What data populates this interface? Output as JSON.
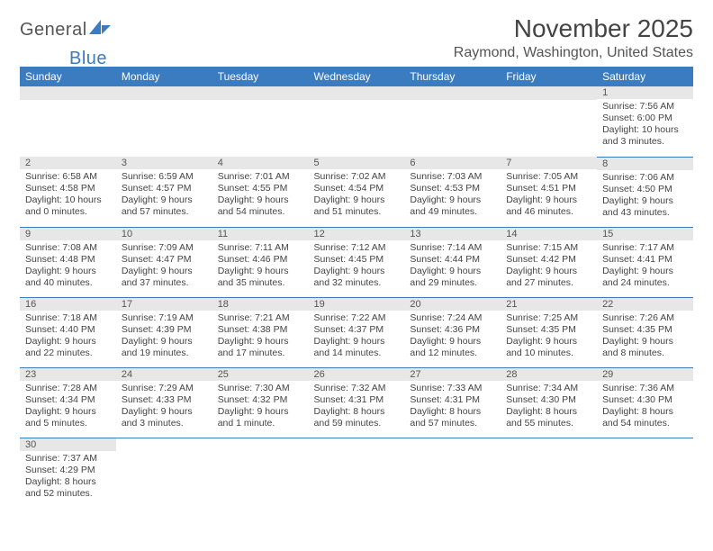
{
  "brand": {
    "general": "General",
    "blue": "Blue"
  },
  "title": "November 2025",
  "location": "Raymond, Washington, United States",
  "weekdays": [
    "Sunday",
    "Monday",
    "Tuesday",
    "Wednesday",
    "Thursday",
    "Friday",
    "Saturday"
  ],
  "colors": {
    "header_bg": "#3b7bbf",
    "header_text": "#ffffff",
    "daynum_bg": "#e7e7e7",
    "cell_border": "#3b7bbf",
    "body_text": "#444444"
  },
  "typography": {
    "title_fontsize": 28,
    "location_fontsize": 16,
    "weekday_fontsize": 12,
    "daynum_fontsize": 11,
    "data_fontsize": 10.5
  },
  "weeks": [
    [
      {
        "n": "",
        "sr": "",
        "ss": "",
        "dl": ""
      },
      {
        "n": "",
        "sr": "",
        "ss": "",
        "dl": ""
      },
      {
        "n": "",
        "sr": "",
        "ss": "",
        "dl": ""
      },
      {
        "n": "",
        "sr": "",
        "ss": "",
        "dl": ""
      },
      {
        "n": "",
        "sr": "",
        "ss": "",
        "dl": ""
      },
      {
        "n": "",
        "sr": "",
        "ss": "",
        "dl": ""
      },
      {
        "n": "1",
        "sr": "Sunrise: 7:56 AM",
        "ss": "Sunset: 6:00 PM",
        "dl": "Daylight: 10 hours and 3 minutes."
      }
    ],
    [
      {
        "n": "2",
        "sr": "Sunrise: 6:58 AM",
        "ss": "Sunset: 4:58 PM",
        "dl": "Daylight: 10 hours and 0 minutes."
      },
      {
        "n": "3",
        "sr": "Sunrise: 6:59 AM",
        "ss": "Sunset: 4:57 PM",
        "dl": "Daylight: 9 hours and 57 minutes."
      },
      {
        "n": "4",
        "sr": "Sunrise: 7:01 AM",
        "ss": "Sunset: 4:55 PM",
        "dl": "Daylight: 9 hours and 54 minutes."
      },
      {
        "n": "5",
        "sr": "Sunrise: 7:02 AM",
        "ss": "Sunset: 4:54 PM",
        "dl": "Daylight: 9 hours and 51 minutes."
      },
      {
        "n": "6",
        "sr": "Sunrise: 7:03 AM",
        "ss": "Sunset: 4:53 PM",
        "dl": "Daylight: 9 hours and 49 minutes."
      },
      {
        "n": "7",
        "sr": "Sunrise: 7:05 AM",
        "ss": "Sunset: 4:51 PM",
        "dl": "Daylight: 9 hours and 46 minutes."
      },
      {
        "n": "8",
        "sr": "Sunrise: 7:06 AM",
        "ss": "Sunset: 4:50 PM",
        "dl": "Daylight: 9 hours and 43 minutes."
      }
    ],
    [
      {
        "n": "9",
        "sr": "Sunrise: 7:08 AM",
        "ss": "Sunset: 4:48 PM",
        "dl": "Daylight: 9 hours and 40 minutes."
      },
      {
        "n": "10",
        "sr": "Sunrise: 7:09 AM",
        "ss": "Sunset: 4:47 PM",
        "dl": "Daylight: 9 hours and 37 minutes."
      },
      {
        "n": "11",
        "sr": "Sunrise: 7:11 AM",
        "ss": "Sunset: 4:46 PM",
        "dl": "Daylight: 9 hours and 35 minutes."
      },
      {
        "n": "12",
        "sr": "Sunrise: 7:12 AM",
        "ss": "Sunset: 4:45 PM",
        "dl": "Daylight: 9 hours and 32 minutes."
      },
      {
        "n": "13",
        "sr": "Sunrise: 7:14 AM",
        "ss": "Sunset: 4:44 PM",
        "dl": "Daylight: 9 hours and 29 minutes."
      },
      {
        "n": "14",
        "sr": "Sunrise: 7:15 AM",
        "ss": "Sunset: 4:42 PM",
        "dl": "Daylight: 9 hours and 27 minutes."
      },
      {
        "n": "15",
        "sr": "Sunrise: 7:17 AM",
        "ss": "Sunset: 4:41 PM",
        "dl": "Daylight: 9 hours and 24 minutes."
      }
    ],
    [
      {
        "n": "16",
        "sr": "Sunrise: 7:18 AM",
        "ss": "Sunset: 4:40 PM",
        "dl": "Daylight: 9 hours and 22 minutes."
      },
      {
        "n": "17",
        "sr": "Sunrise: 7:19 AM",
        "ss": "Sunset: 4:39 PM",
        "dl": "Daylight: 9 hours and 19 minutes."
      },
      {
        "n": "18",
        "sr": "Sunrise: 7:21 AM",
        "ss": "Sunset: 4:38 PM",
        "dl": "Daylight: 9 hours and 17 minutes."
      },
      {
        "n": "19",
        "sr": "Sunrise: 7:22 AM",
        "ss": "Sunset: 4:37 PM",
        "dl": "Daylight: 9 hours and 14 minutes."
      },
      {
        "n": "20",
        "sr": "Sunrise: 7:24 AM",
        "ss": "Sunset: 4:36 PM",
        "dl": "Daylight: 9 hours and 12 minutes."
      },
      {
        "n": "21",
        "sr": "Sunrise: 7:25 AM",
        "ss": "Sunset: 4:35 PM",
        "dl": "Daylight: 9 hours and 10 minutes."
      },
      {
        "n": "22",
        "sr": "Sunrise: 7:26 AM",
        "ss": "Sunset: 4:35 PM",
        "dl": "Daylight: 9 hours and 8 minutes."
      }
    ],
    [
      {
        "n": "23",
        "sr": "Sunrise: 7:28 AM",
        "ss": "Sunset: 4:34 PM",
        "dl": "Daylight: 9 hours and 5 minutes."
      },
      {
        "n": "24",
        "sr": "Sunrise: 7:29 AM",
        "ss": "Sunset: 4:33 PM",
        "dl": "Daylight: 9 hours and 3 minutes."
      },
      {
        "n": "25",
        "sr": "Sunrise: 7:30 AM",
        "ss": "Sunset: 4:32 PM",
        "dl": "Daylight: 9 hours and 1 minute."
      },
      {
        "n": "26",
        "sr": "Sunrise: 7:32 AM",
        "ss": "Sunset: 4:31 PM",
        "dl": "Daylight: 8 hours and 59 minutes."
      },
      {
        "n": "27",
        "sr": "Sunrise: 7:33 AM",
        "ss": "Sunset: 4:31 PM",
        "dl": "Daylight: 8 hours and 57 minutes."
      },
      {
        "n": "28",
        "sr": "Sunrise: 7:34 AM",
        "ss": "Sunset: 4:30 PM",
        "dl": "Daylight: 8 hours and 55 minutes."
      },
      {
        "n": "29",
        "sr": "Sunrise: 7:36 AM",
        "ss": "Sunset: 4:30 PM",
        "dl": "Daylight: 8 hours and 54 minutes."
      }
    ],
    [
      {
        "n": "30",
        "sr": "Sunrise: 7:37 AM",
        "ss": "Sunset: 4:29 PM",
        "dl": "Daylight: 8 hours and 52 minutes."
      },
      {
        "n": "",
        "sr": "",
        "ss": "",
        "dl": ""
      },
      {
        "n": "",
        "sr": "",
        "ss": "",
        "dl": ""
      },
      {
        "n": "",
        "sr": "",
        "ss": "",
        "dl": ""
      },
      {
        "n": "",
        "sr": "",
        "ss": "",
        "dl": ""
      },
      {
        "n": "",
        "sr": "",
        "ss": "",
        "dl": ""
      },
      {
        "n": "",
        "sr": "",
        "ss": "",
        "dl": ""
      }
    ]
  ]
}
